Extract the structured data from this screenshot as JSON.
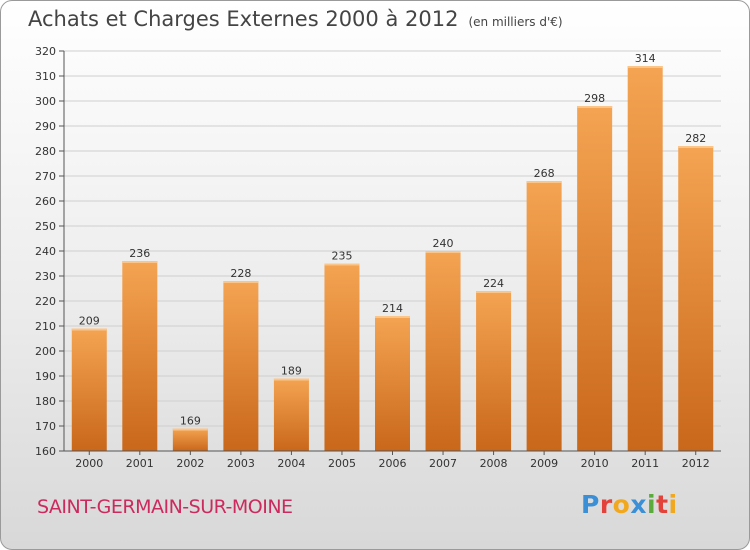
{
  "header": {
    "title": "Achats et Charges Externes 2000 à 2012",
    "unit": "(en milliers d'€)"
  },
  "footer": {
    "commune": "SAINT-GERMAIN-SUR-MOINE",
    "logo": "Proxiti"
  },
  "colors": {
    "bar_top": "#f4a452",
    "bar_bottom": "#c9671a",
    "grid": "#cfcfcf",
    "commune": "#cc2a5e"
  },
  "chart_data": {
    "type": "bar",
    "categories": [
      "2000",
      "2001",
      "2002",
      "2003",
      "2004",
      "2005",
      "2006",
      "2007",
      "2008",
      "2009",
      "2010",
      "2011",
      "2012"
    ],
    "values": [
      209,
      236,
      169,
      228,
      189,
      235,
      214,
      240,
      224,
      268,
      298,
      314,
      282
    ],
    "ylim": [
      160,
      320
    ],
    "yticks": [
      160,
      170,
      180,
      190,
      200,
      210,
      220,
      230,
      240,
      250,
      260,
      270,
      280,
      290,
      300,
      310,
      320
    ],
    "grid": true,
    "legend": "none"
  }
}
